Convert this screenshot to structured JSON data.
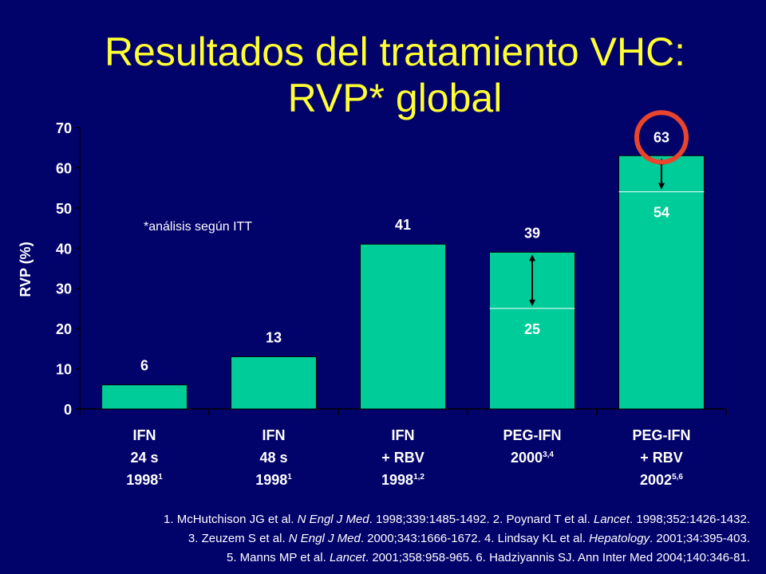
{
  "title": {
    "line1": "Resultados del tratamiento VHC:",
    "line2": "RVP* global"
  },
  "note": "*análisis según ITT",
  "chart_data": {
    "type": "bar",
    "ylabel": "RVP (%)",
    "ylim": [
      0,
      70
    ],
    "yticks": [
      0,
      10,
      20,
      30,
      40,
      50,
      60,
      70
    ],
    "grid": false,
    "bar_color": "#00cc99",
    "categories": [
      {
        "line1": "IFN",
        "line2": "24 s",
        "line3": "1998",
        "sup": "1"
      },
      {
        "line1": "IFN",
        "line2": "48 s",
        "line3": "1998",
        "sup": "1"
      },
      {
        "line1": "IFN",
        "line2": "+ RBV",
        "line3": "1998",
        "sup": "1,2"
      },
      {
        "line1": "PEG-IFN",
        "line2": "2000",
        "line2_sup": "3,4",
        "line3": ""
      },
      {
        "line1": "PEG-IFN",
        "line2": "+ RBV",
        "line3": "2002",
        "sup": "5,6"
      }
    ],
    "values": [
      6,
      13,
      41,
      39,
      63
    ],
    "data_labels": [
      "6",
      "13",
      "41",
      "39",
      "63"
    ],
    "inner_values": [
      null,
      null,
      null,
      25,
      54
    ],
    "inner_labels": [
      "",
      "",
      "",
      "25",
      "54"
    ],
    "highlight": {
      "category_index": 4,
      "shape": "circle",
      "color": "#e8452c"
    }
  },
  "references": {
    "line1": [
      {
        "t": "1. McHutchison JG et al. ",
        "i": false
      },
      {
        "t": "N Engl J Med",
        "i": true
      },
      {
        "t": ". 1998;339:1485-1492.  2. Poynard T et al. ",
        "i": false
      },
      {
        "t": "Lancet",
        "i": true
      },
      {
        "t": ". 1998;352:1426-1432.",
        "i": false
      }
    ],
    "line2": [
      {
        "t": "3. Zeuzem S et al. ",
        "i": false
      },
      {
        "t": "N Engl J Med",
        "i": true
      },
      {
        "t": ". 2000;343:1666-1672.  4. Lindsay KL et al. ",
        "i": false
      },
      {
        "t": "Hepatology",
        "i": true
      },
      {
        "t": ". 2001;34:395-403.",
        "i": false
      }
    ],
    "line3": [
      {
        "t": "5. Manns MP et al. ",
        "i": false
      },
      {
        "t": "Lancet",
        "i": true
      },
      {
        "t": ". 2001;358:958-965.  6. Hadziyannis SJ. Ann Inter Med 2004;140:346-81.",
        "i": false
      }
    ]
  }
}
